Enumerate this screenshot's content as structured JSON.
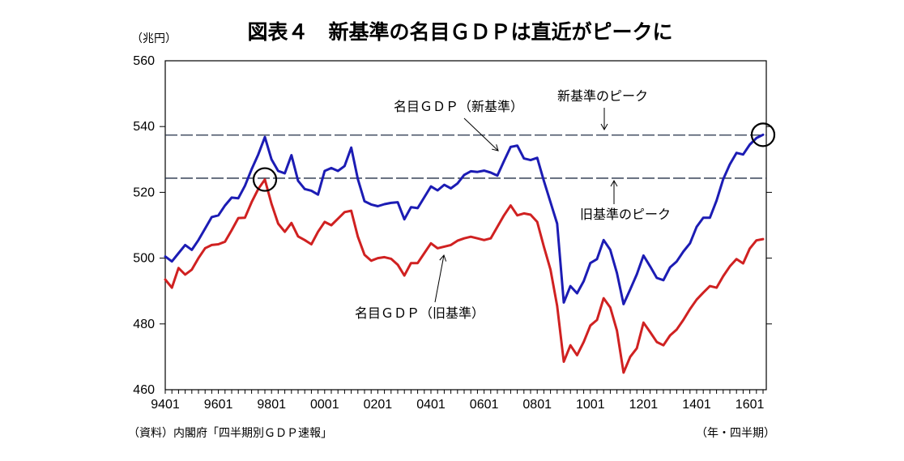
{
  "chart_data": {
    "type": "line",
    "title": "図表４　新基準の名目ＧＤＰは直近がピークに",
    "y_unit_label": "（兆円）",
    "x_axis_label": "（年・四半期）",
    "source": "（資料）内閣府「四半期別ＧＤＰ速報」",
    "ylim": [
      460,
      560
    ],
    "y_ticks": [
      460,
      480,
      500,
      520,
      540,
      560
    ],
    "x_tick_labels": [
      "9401",
      "9601",
      "9801",
      "0001",
      "0201",
      "0401",
      "0601",
      "0801",
      "1001",
      "1201",
      "1401",
      "1601"
    ],
    "x_start": "1994Q1",
    "x_end": "2016Q3",
    "x_freq": "quarterly",
    "grid": false,
    "legend_position": "none",
    "series": [
      {
        "name": "名目ＧＤＰ（新基準）",
        "color": "#1c1cb4",
        "values": [
          500.5,
          499.0,
          501.5,
          504.0,
          502.5,
          505.5,
          509.0,
          512.5,
          513.0,
          516.0,
          518.4,
          518.2,
          522.0,
          527.0,
          531.5,
          536.8,
          530.0,
          526.5,
          525.8,
          531.3,
          523.5,
          521.0,
          520.5,
          519.3,
          526.5,
          527.4,
          526.5,
          528.0,
          533.6,
          524.0,
          517.3,
          516.3,
          515.8,
          516.4,
          516.8,
          517.0,
          511.8,
          515.5,
          515.2,
          518.5,
          521.8,
          520.6,
          522.3,
          521.2,
          522.7,
          525.3,
          526.4,
          526.2,
          526.6,
          526.0,
          525.1,
          529.5,
          533.8,
          534.2,
          530.3,
          529.8,
          530.5,
          523.5,
          517.0,
          510.5,
          486.5,
          491.5,
          489.3,
          493.0,
          498.5,
          499.7,
          505.5,
          502.5,
          495.5,
          486.0,
          490.5,
          495.1,
          500.8,
          497.5,
          494.0,
          493.3,
          497.2,
          499.0,
          502.0,
          504.5,
          509.5,
          512.3,
          512.3,
          517.5,
          524.0,
          528.5,
          532.0,
          531.5,
          534.5,
          536.5,
          537.5
        ]
      },
      {
        "name": "名目ＧＤＰ（旧基準）",
        "color": "#d02121",
        "values": [
          493.5,
          491.0,
          497.0,
          495.0,
          496.5,
          500.0,
          503.0,
          504.0,
          504.2,
          505.0,
          508.5,
          512.2,
          512.3,
          517.0,
          521.0,
          523.9,
          516.5,
          510.5,
          508.0,
          510.7,
          506.6,
          505.5,
          504.2,
          508.0,
          511.0,
          510.0,
          512.0,
          514.0,
          514.4,
          506.5,
          501.0,
          499.2,
          500.0,
          500.3,
          499.8,
          498.0,
          494.7,
          498.5,
          498.5,
          501.5,
          504.5,
          503.0,
          503.5,
          504.0,
          505.3,
          506.0,
          506.5,
          506.0,
          505.5,
          506.0,
          509.5,
          513.0,
          516.0,
          513.0,
          513.6,
          513.2,
          511.0,
          503.5,
          496.5,
          485.5,
          468.5,
          473.5,
          470.5,
          474.5,
          479.5,
          481.2,
          487.8,
          485.0,
          478.0,
          465.2,
          470.0,
          472.6,
          480.4,
          477.5,
          474.5,
          473.5,
          476.5,
          478.3,
          481.2,
          484.5,
          487.4,
          489.5,
          491.5,
          491.0,
          494.5,
          497.5,
          499.7,
          498.4,
          502.9,
          505.4,
          505.8
        ]
      }
    ],
    "reference_lines": [
      {
        "label": "新基準のピーク",
        "value": 537.4
      },
      {
        "label": "旧基準のピーク",
        "value": 524.3
      }
    ],
    "markers": [
      {
        "type": "circle",
        "series": "名目ＧＤＰ（新基準）",
        "point_index": 90,
        "value": 537.5
      },
      {
        "type": "circle",
        "series": "名目ＧＤＰ（旧基準）",
        "point_index": 15,
        "value": 523.9
      }
    ]
  }
}
